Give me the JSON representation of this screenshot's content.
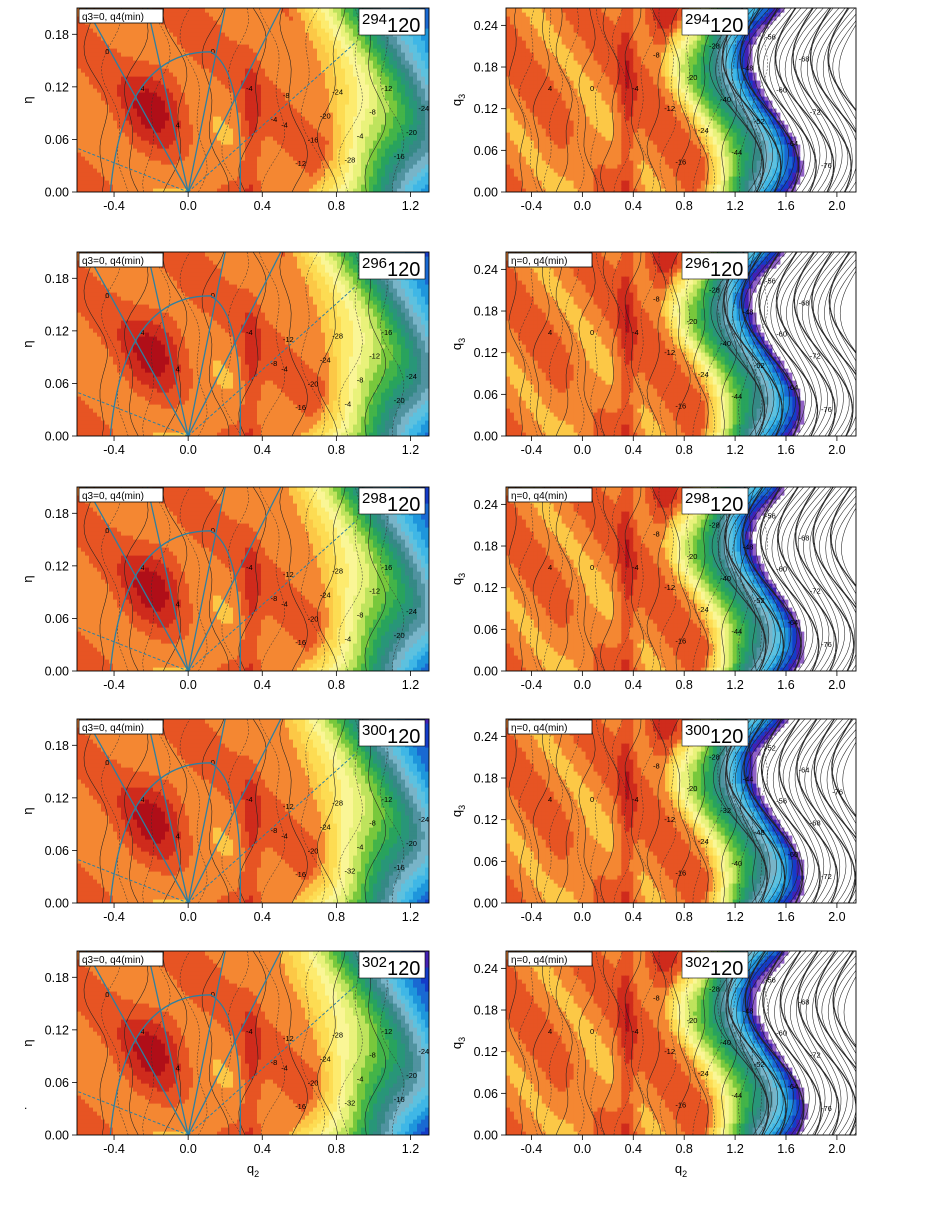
{
  "figure": {
    "stray_mark": "."
  },
  "chart_data": [
    {
      "type": "heatmap",
      "panel": "L294",
      "legend": "q3=0, q4(min)",
      "tag_sup": "294",
      "tag_main": "120",
      "xlabel": "",
      "ylabel": "η",
      "xlim": [
        -0.6,
        1.3
      ],
      "ylim": [
        0,
        0.21
      ],
      "xticks": [
        "-0.4",
        "0.0",
        "0.4",
        "0.8",
        "1.2"
      ],
      "yticks": [
        "0.00",
        "0.06",
        "0.12",
        "0.18"
      ],
      "contour_labels": [
        "0",
        "4",
        "4",
        "0",
        "-4",
        "-4",
        "-4",
        "-8",
        "-12",
        "-16",
        "-20",
        "-24",
        "-28",
        "-4",
        "-8",
        "-12",
        "-16",
        "-20",
        "-24"
      ]
    },
    {
      "type": "heatmap",
      "panel": "R294",
      "legend": "",
      "tag_sup": "294",
      "tag_main": "120",
      "xlabel": "",
      "ylabel": "q3",
      "xlim": [
        -0.6,
        2.15
      ],
      "ylim": [
        0,
        0.265
      ],
      "xticks": [
        "-0.4",
        "0.0",
        "0.4",
        "0.8",
        "1.2",
        "1.6",
        "2.0"
      ],
      "yticks": [
        "0.00",
        "0.06",
        "0.12",
        "0.18",
        "0.24"
      ],
      "contour_labels": [
        "4",
        "0",
        "-4",
        "-8",
        "-12",
        "-16",
        "-20",
        "-24",
        "-28",
        "-40",
        "-44",
        "-48",
        "-52",
        "-56",
        "-60",
        "-64",
        "-68",
        "-72",
        "-76"
      ]
    },
    {
      "type": "heatmap",
      "panel": "L296",
      "legend": "q3=0, q4(min)",
      "tag_sup": "296",
      "tag_main": "120",
      "xlabel": "",
      "ylabel": "η",
      "xlim": [
        -0.6,
        1.3
      ],
      "ylim": [
        0,
        0.21
      ],
      "xticks": [
        "-0.4",
        "0.0",
        "0.4",
        "0.8",
        "1.2"
      ],
      "yticks": [
        "0.00",
        "0.06",
        "0.12",
        "0.18"
      ],
      "contour_labels": [
        "0",
        "4",
        "4",
        "0",
        "-4",
        "-4",
        "-8",
        "-12",
        "-16",
        "-20",
        "-24",
        "-28",
        "-4",
        "-8",
        "-12",
        "-16",
        "-20",
        "-24"
      ]
    },
    {
      "type": "heatmap",
      "panel": "R296",
      "legend": "η=0, q4(min)",
      "tag_sup": "296",
      "tag_main": "120",
      "xlabel": "",
      "ylabel": "q3",
      "xlim": [
        -0.6,
        2.15
      ],
      "ylim": [
        0,
        0.265
      ],
      "xticks": [
        "-0.4",
        "0.0",
        "0.4",
        "0.8",
        "1.2",
        "1.6",
        "2.0"
      ],
      "yticks": [
        "0.00",
        "0.06",
        "0.12",
        "0.18",
        "0.24"
      ],
      "contour_labels": [
        "4",
        "0",
        "-4",
        "-8",
        "-12",
        "-16",
        "-20",
        "-24",
        "-28",
        "-40",
        "-44",
        "-48",
        "-52",
        "-56",
        "-60",
        "-64",
        "-68",
        "-72",
        "-76"
      ]
    },
    {
      "type": "heatmap",
      "panel": "L298",
      "legend": "q3=0, q4(min)",
      "tag_sup": "298",
      "tag_main": "120",
      "xlabel": "",
      "ylabel": "η",
      "xlim": [
        -0.6,
        1.3
      ],
      "ylim": [
        0,
        0.21
      ],
      "xticks": [
        "-0.4",
        "0.0",
        "0.4",
        "0.8",
        "1.2"
      ],
      "yticks": [
        "0.00",
        "0.06",
        "0.12",
        "0.18"
      ],
      "contour_labels": [
        "0",
        "4",
        "4",
        "0",
        "-4",
        "-4",
        "-8",
        "-12",
        "-16",
        "-20",
        "-24",
        "-28",
        "-4",
        "-8",
        "-12",
        "-16",
        "-20",
        "-24"
      ]
    },
    {
      "type": "heatmap",
      "panel": "R298",
      "legend": "η=0, q4(min)",
      "tag_sup": "298",
      "tag_main": "120",
      "xlabel": "",
      "ylabel": "q3",
      "xlim": [
        -0.6,
        2.15
      ],
      "ylim": [
        0,
        0.265
      ],
      "xticks": [
        "-0.4",
        "0.0",
        "0.4",
        "0.8",
        "1.2",
        "1.6",
        "2.0"
      ],
      "yticks": [
        "0.00",
        "0.06",
        "0.12",
        "0.18",
        "0.24"
      ],
      "contour_labels": [
        "4",
        "0",
        "-4",
        "-8",
        "-12",
        "-16",
        "-20",
        "-24",
        "-28",
        "-40",
        "-44",
        "-48",
        "-52",
        "-56",
        "-60",
        "-64",
        "-68",
        "-72",
        "-76"
      ]
    },
    {
      "type": "heatmap",
      "panel": "L300",
      "legend": "q3=0, q4(min)",
      "tag_sup": "300",
      "tag_main": "120",
      "xlabel": "",
      "ylabel": "η",
      "xlim": [
        -0.6,
        1.3
      ],
      "ylim": [
        0,
        0.21
      ],
      "xticks": [
        "-0.4",
        "0.0",
        "0.4",
        "0.8",
        "1.2"
      ],
      "yticks": [
        "0.00",
        "0.06",
        "0.12",
        "0.18"
      ],
      "contour_labels": [
        "0",
        "4",
        "4",
        "0",
        "-4",
        "-4",
        "-8",
        "-12",
        "-16",
        "-20",
        "-24",
        "-28",
        "-32",
        "-4",
        "-8",
        "-12",
        "-16",
        "-20",
        "-24"
      ]
    },
    {
      "type": "heatmap",
      "panel": "R300",
      "legend": "η=0, q4(min)",
      "tag_sup": "300",
      "tag_main": "120",
      "xlabel": "",
      "ylabel": "q3",
      "xlim": [
        -0.6,
        2.15
      ],
      "ylim": [
        0,
        0.265
      ],
      "xticks": [
        "-0.4",
        "0.0",
        "0.4",
        "0.8",
        "1.2",
        "1.6",
        "2.0"
      ],
      "yticks": [
        "0.00",
        "0.06",
        "0.12",
        "0.18",
        "0.24"
      ],
      "contour_labels": [
        "4",
        "0",
        "-4",
        "-8",
        "-12",
        "-16",
        "-20",
        "-24",
        "-28",
        "-32",
        "-40",
        "-44",
        "-48",
        "-52",
        "-56",
        "-60",
        "-64",
        "-68",
        "-72",
        "-76"
      ]
    },
    {
      "type": "heatmap",
      "panel": "L302",
      "legend": "q3=0, q4(min)",
      "tag_sup": "302",
      "tag_main": "120",
      "xlabel": "q2",
      "ylabel": "η",
      "xlim": [
        -0.6,
        1.3
      ],
      "ylim": [
        0,
        0.21
      ],
      "xticks": [
        "-0.4",
        "0.0",
        "0.4",
        "0.8",
        "1.2"
      ],
      "yticks": [
        "0.00",
        "0.06",
        "0.12",
        "0.18"
      ],
      "contour_labels": [
        "0",
        "4",
        "4",
        "0",
        "-4",
        "-4",
        "-8",
        "-12",
        "-16",
        "-20",
        "-24",
        "-28",
        "-32",
        "-4",
        "-8",
        "-12",
        "-16",
        "-20",
        "-24"
      ]
    },
    {
      "type": "heatmap",
      "panel": "R302",
      "legend": "η=0, q4(min)",
      "tag_sup": "302",
      "tag_main": "120",
      "xlabel": "q2",
      "ylabel": "q3",
      "xlim": [
        -0.6,
        2.15
      ],
      "ylim": [
        0,
        0.265
      ],
      "xticks": [
        "-0.4",
        "0.0",
        "0.4",
        "0.8",
        "1.2",
        "1.6",
        "2.0"
      ],
      "yticks": [
        "0.00",
        "0.06",
        "0.12",
        "0.18",
        "0.24"
      ],
      "contour_labels": [
        "4",
        "0",
        "-4",
        "-8",
        "-12",
        "-16",
        "-20",
        "-24",
        "-28",
        "-40",
        "-44",
        "-48",
        "-52",
        "-56",
        "-60",
        "-64",
        "-68",
        "-72",
        "-76"
      ]
    }
  ]
}
